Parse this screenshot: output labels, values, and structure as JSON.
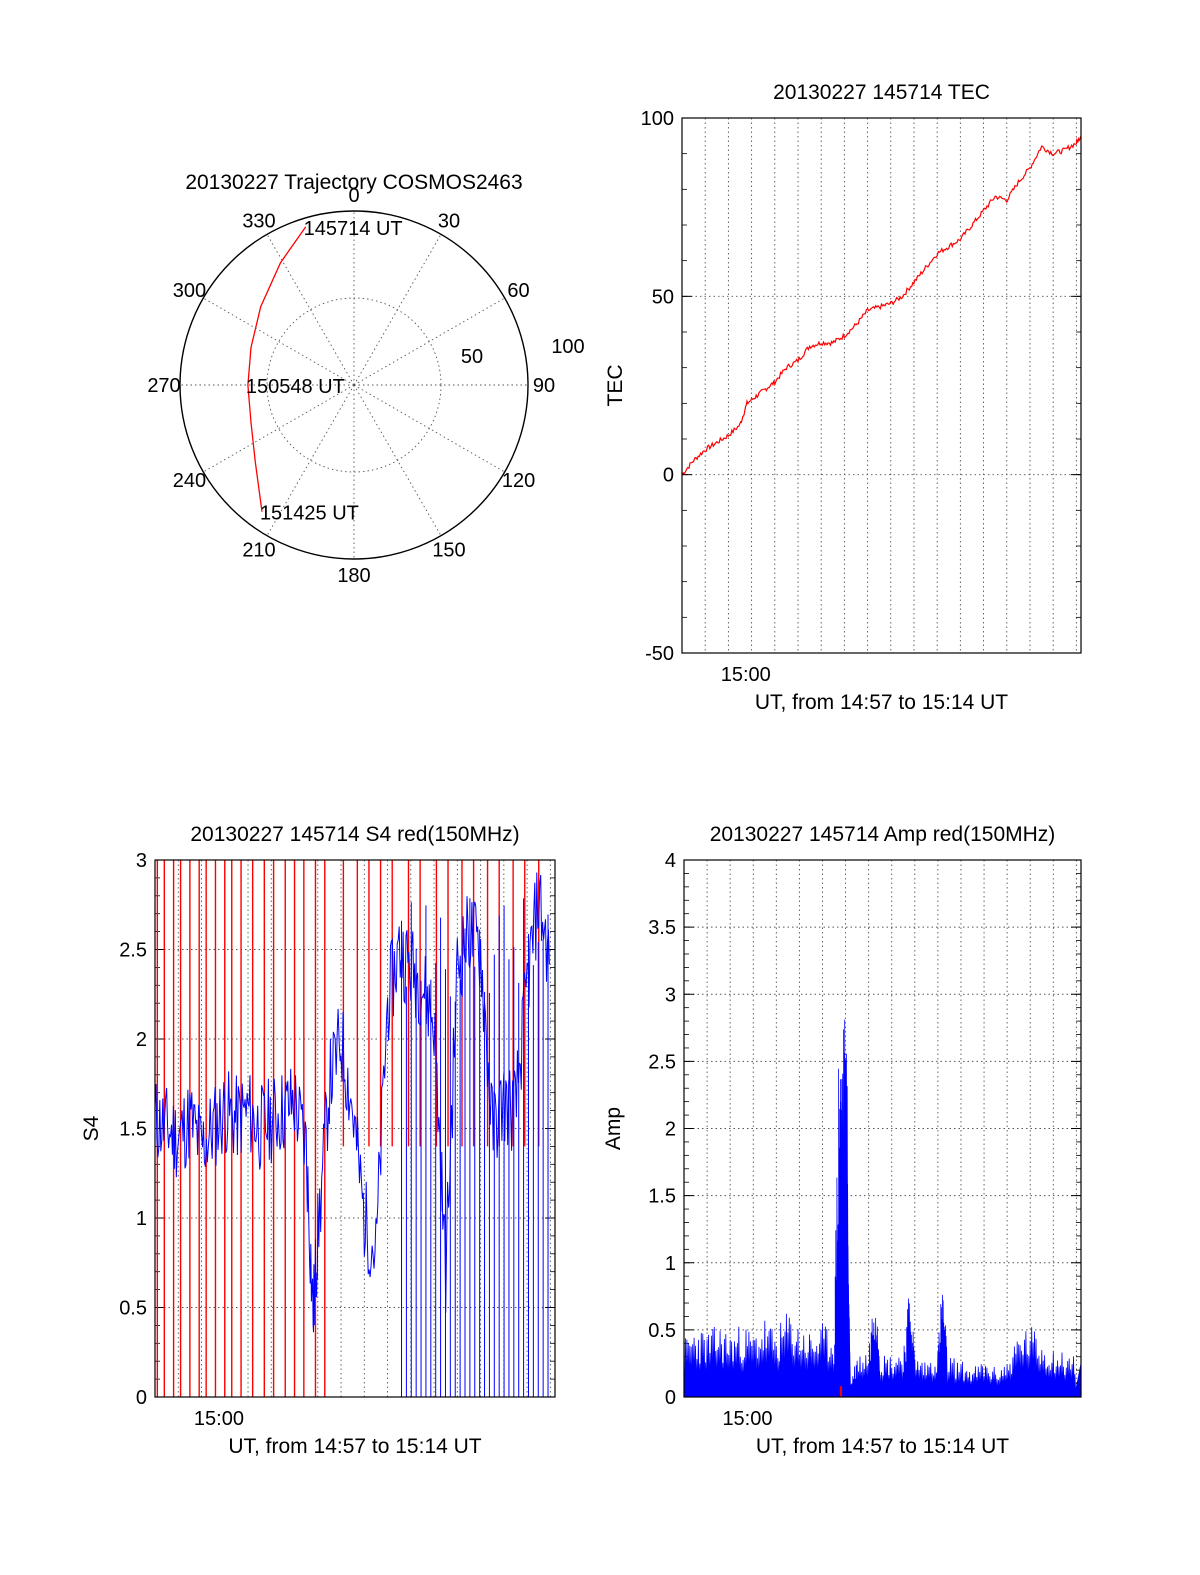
{
  "colors": {
    "red": "#ff0000",
    "blue": "#0000ff",
    "black": "#000000"
  },
  "chart_data": [
    {
      "id": "trajectory",
      "type": "polar",
      "title": "20130227 Trajectory COSMOS2463",
      "azimuth_labels": [
        "0",
        "30",
        "60",
        "90",
        "120",
        "150",
        "180",
        "210",
        "240",
        "270",
        "300",
        "330"
      ],
      "radial_labels": [
        "50",
        "100"
      ],
      "rlim": [
        0,
        100
      ],
      "radial_direction": "zenith at center, horizon (100) at rim",
      "track": {
        "color": "red",
        "points": [
          {
            "az": 343,
            "r": 95
          },
          {
            "az": 329,
            "r": 82
          },
          {
            "az": 310,
            "r": 70
          },
          {
            "az": 290,
            "r": 63
          },
          {
            "az": 270,
            "r": 61
          },
          {
            "az": 250,
            "r": 63
          },
          {
            "az": 232,
            "r": 72
          },
          {
            "az": 216,
            "r": 90
          }
        ]
      },
      "annotations": [
        {
          "text": "145714 UT",
          "az": 343,
          "r": 95
        },
        {
          "text": "150548 UT",
          "az": 270,
          "r": 61
        },
        {
          "text": "151425 UT",
          "az": 216,
          "r": 90
        }
      ]
    },
    {
      "id": "tec",
      "type": "line",
      "title": "20130227 145714 TEC",
      "xlabel": "UT, from 14:57 to 15:14 UT",
      "ylabel": "TEC",
      "xlim_min": [
        0,
        17.2
      ],
      "ylim": [
        -50,
        100
      ],
      "yticks": [
        "100",
        "50",
        "0",
        "-50"
      ],
      "xticks": [
        {
          "label": "15:00",
          "x": 2.75
        }
      ],
      "grid": true,
      "series": [
        {
          "color": "red",
          "x": [
            0,
            0.5,
            1.0,
            1.5,
            2.0,
            2.5,
            2.8,
            3.2,
            3.6,
            4.0,
            4.5,
            5.0,
            5.5,
            6.0,
            6.5,
            7.0,
            7.5,
            8.0,
            8.5,
            9.0,
            9.5,
            10.0,
            10.5,
            11.0,
            11.5,
            12.0,
            12.5,
            13.0,
            13.5,
            14.0,
            14.5,
            15.0,
            15.5,
            16.0,
            16.5,
            17.0,
            17.2
          ],
          "y": [
            0,
            4,
            7,
            9,
            11,
            14,
            20,
            22,
            24,
            26,
            30,
            32,
            36,
            37,
            37,
            39,
            42,
            46,
            47,
            48,
            50,
            54,
            58,
            62,
            64,
            66,
            70,
            74,
            78,
            77,
            82,
            86,
            92,
            90,
            91,
            93,
            95
          ]
        }
      ]
    },
    {
      "id": "s4",
      "type": "line",
      "title": "20130227 145714 S4 red(150MHz)",
      "xlabel": "UT, from 14:57 to 15:14 UT",
      "ylabel": "S4",
      "xlim_min": [
        0,
        17.2
      ],
      "ylim": [
        0,
        3
      ],
      "yticks": [
        "3",
        "2.5",
        "2",
        "1.5",
        "1",
        "0.5",
        "0"
      ],
      "xticks": [
        {
          "label": "15:00",
          "x": 2.75
        }
      ],
      "grid": true,
      "series": [
        {
          "name": "",
          "color": "blue",
          "x": [
            0,
            0.5,
            1.0,
            1.5,
            2.0,
            2.5,
            3.0,
            3.5,
            4.0,
            4.5,
            5.0,
            5.5,
            6.0,
            6.5,
            6.8,
            7.0,
            7.5,
            8.0,
            8.5,
            9.0,
            9.5,
            10.0,
            10.5,
            11.0,
            11.5,
            12.0,
            12.5,
            13.0,
            13.5,
            14.0,
            14.5,
            15.0,
            15.5,
            16.0,
            16.5,
            17.0
          ],
          "y": [
            1.55,
            1.5,
            1.45,
            1.55,
            1.4,
            1.5,
            1.6,
            1.55,
            1.6,
            1.5,
            1.55,
            1.6,
            1.65,
            1.4,
            0.45,
            0.9,
            1.75,
            2.0,
            1.6,
            1.0,
            0.8,
            2.2,
            2.5,
            2.4,
            2.3,
            2.1,
            0.7,
            2.4,
            2.6,
            2.5,
            1.5,
            1.65,
            1.6,
            2.3,
            2.8,
            2.4
          ]
        },
        {
          "name": "",
          "color": "red",
          "x": [
            0.1,
            0.4,
            0.8,
            1.1,
            1.5,
            1.9,
            2.2,
            2.6,
            3.0,
            3.3,
            3.7,
            4.2,
            4.7,
            5.1,
            5.6,
            6.0,
            6.4,
            6.9,
            7.3,
            8.1,
            8.7,
            9.2,
            9.7,
            10.2,
            10.9,
            11.4,
            12.1,
            12.6,
            13.2,
            13.7,
            14.3,
            14.8,
            15.4,
            15.9,
            16.5
          ],
          "y": [
            0,
            0,
            0,
            0,
            0,
            0,
            0,
            0,
            0,
            0,
            0,
            0,
            0,
            0,
            0,
            0,
            0,
            0,
            0,
            3,
            3,
            3,
            3,
            3,
            3,
            3,
            3,
            3,
            3,
            3,
            3,
            3,
            3,
            3,
            3
          ]
        }
      ]
    },
    {
      "id": "amp",
      "type": "line",
      "title": "20130227 145714 Amp red(150MHz)",
      "xlabel": "UT, from 14:57 to 15:14 UT",
      "ylabel": "Amp",
      "xlim_min": [
        0,
        17.2
      ],
      "ylim": [
        0,
        4
      ],
      "yticks": [
        "4",
        "3.5",
        "3",
        "2.5",
        "2",
        "1.5",
        "1",
        "0.5",
        "0"
      ],
      "xticks": [
        {
          "label": "15:00",
          "x": 2.75
        }
      ],
      "grid": true,
      "series": [
        {
          "name": "",
          "color": "blue",
          "x": [
            0,
            0.5,
            1.0,
            1.5,
            2.0,
            2.5,
            3.0,
            3.5,
            4.0,
            4.5,
            5.0,
            5.5,
            6.0,
            6.5,
            6.7,
            6.8,
            6.95,
            7.05,
            7.2,
            7.5,
            8.0,
            8.3,
            8.5,
            9.0,
            9.5,
            9.8,
            10.0,
            10.5,
            11.0,
            11.2,
            11.4,
            12.0,
            12.5,
            13.0,
            13.5,
            14.0,
            14.5,
            15.0,
            15.5,
            16.0,
            16.5,
            17.0
          ],
          "y": [
            0.4,
            0.5,
            0.45,
            0.5,
            0.45,
            0.5,
            0.45,
            0.55,
            0.45,
            0.6,
            0.5,
            0.45,
            0.5,
            0.45,
            2.4,
            2.55,
            2.65,
            2.5,
            0.1,
            0.3,
            0.35,
            0.9,
            0.3,
            0.3,
            0.35,
            0.8,
            0.3,
            0.25,
            0.35,
            0.85,
            0.3,
            0.25,
            0.2,
            0.25,
            0.2,
            0.25,
            0.45,
            0.5,
            0.4,
            0.35,
            0.3,
            0.3
          ]
        },
        {
          "name": "",
          "color": "red",
          "x": [
            6.75,
            6.85
          ],
          "y": [
            0.08,
            0.08
          ]
        }
      ]
    }
  ]
}
